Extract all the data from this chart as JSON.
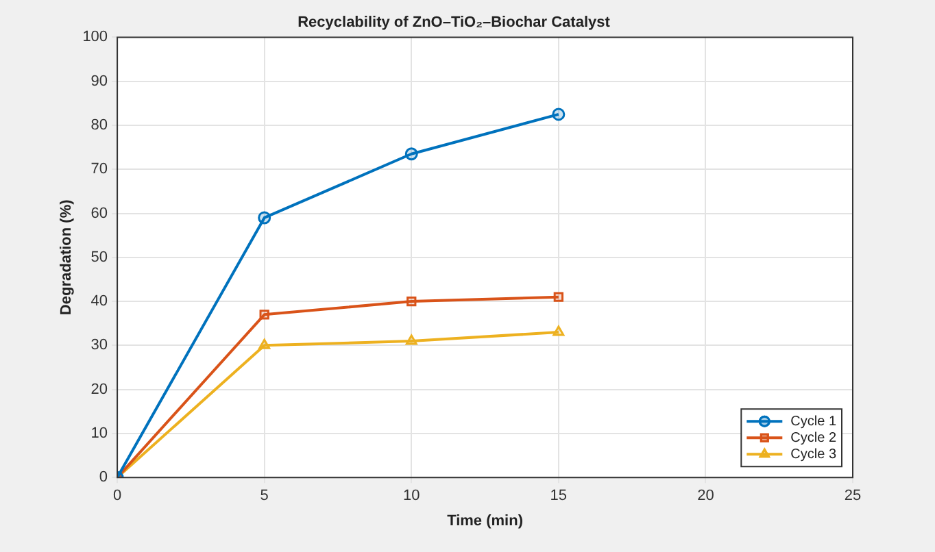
{
  "chart_data": {
    "type": "line",
    "title": "Recyclability of ZnO–TiO₂–Biochar Catalyst",
    "xlabel": "Time (min)",
    "ylabel": "Degradation (%)",
    "x": [
      0,
      5,
      10,
      15
    ],
    "series": [
      {
        "name": "Cycle 1",
        "color": "#0072bd",
        "values": [
          0,
          59,
          73.5,
          82.5
        ],
        "marker": "circle"
      },
      {
        "name": "Cycle 2",
        "color": "#d95319",
        "values": [
          0,
          37,
          40,
          41
        ],
        "marker": "square"
      },
      {
        "name": "Cycle 3",
        "color": "#edb120",
        "values": [
          0,
          30,
          31,
          33
        ],
        "marker": "triangle"
      }
    ],
    "xlim": [
      0,
      25
    ],
    "xticks": [
      0,
      5,
      10,
      15,
      20,
      25
    ],
    "ylim": [
      0,
      100
    ],
    "yticks": [
      0,
      10,
      20,
      30,
      40,
      50,
      60,
      70,
      80,
      90,
      100
    ],
    "grid": true,
    "legend": "bottom right",
    "line_style": "solid"
  }
}
